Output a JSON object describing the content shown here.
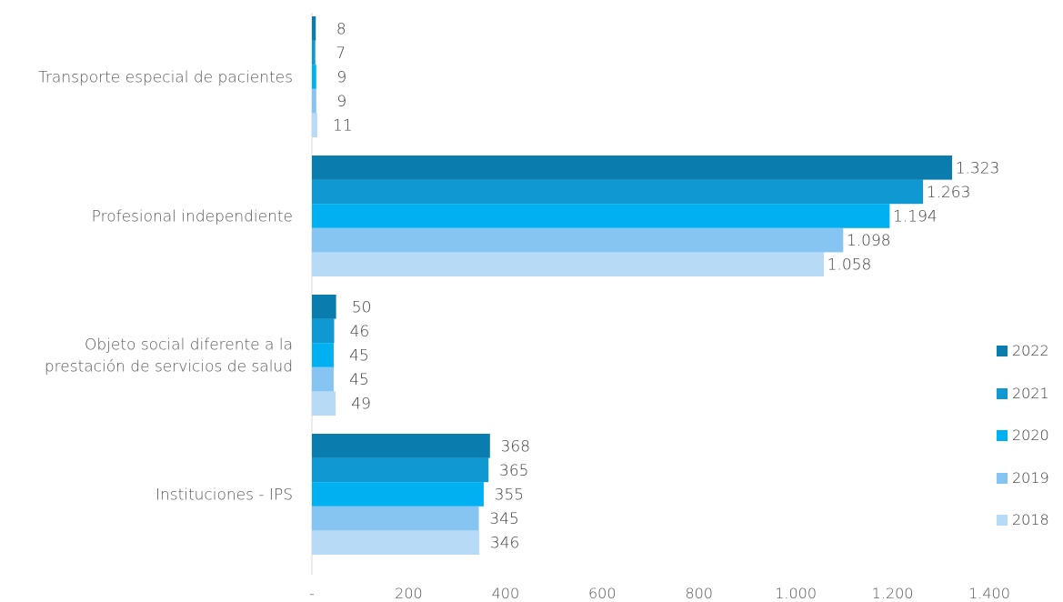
{
  "chart_data": {
    "type": "bar",
    "orientation": "horizontal",
    "categories": [
      "Transporte especial de pacientes",
      "Profesional independiente",
      "Objeto social diferente a la prestación de servicios de salud",
      "Instituciones - IPS"
    ],
    "category_lines": [
      [
        "Transporte especial de pacientes"
      ],
      [
        "Profesional independiente"
      ],
      [
        "Objeto social diferente a la",
        "prestación de servicios de salud"
      ],
      [
        "Instituciones - IPS"
      ]
    ],
    "series": [
      {
        "name": "2022",
        "color": "#0a7cae",
        "values": [
          8,
          1323,
          50,
          368
        ],
        "labels": [
          "8",
          "1.323",
          "50",
          "368"
        ]
      },
      {
        "name": "2021",
        "color": "#0f98d2",
        "values": [
          7,
          1263,
          46,
          365
        ],
        "labels": [
          "7",
          "1.263",
          "46",
          "365"
        ]
      },
      {
        "name": "2020",
        "color": "#00b0f0",
        "values": [
          9,
          1194,
          45,
          355
        ],
        "labels": [
          "9",
          "1.194",
          "45",
          "355"
        ]
      },
      {
        "name": "2019",
        "color": "#86c5f1",
        "values": [
          9,
          1098,
          45,
          345
        ],
        "labels": [
          "9",
          "1.098",
          "45",
          "345"
        ]
      },
      {
        "name": "2018",
        "color": "#b7daf6",
        "values": [
          11,
          1058,
          49,
          346
        ],
        "labels": [
          "11",
          "1.058",
          "49",
          "346"
        ]
      }
    ],
    "xlim": [
      0,
      1400
    ],
    "x_ticks": [
      0,
      200,
      400,
      600,
      800,
      1000,
      1200,
      1400
    ],
    "x_tick_labels": [
      "-",
      "200",
      "400",
      "600",
      "800",
      "1.000",
      "1.200",
      "1.400"
    ],
    "legend_order": [
      "2022",
      "2021",
      "2020",
      "2019",
      "2018"
    ],
    "legend_position": "right",
    "grid": false
  }
}
